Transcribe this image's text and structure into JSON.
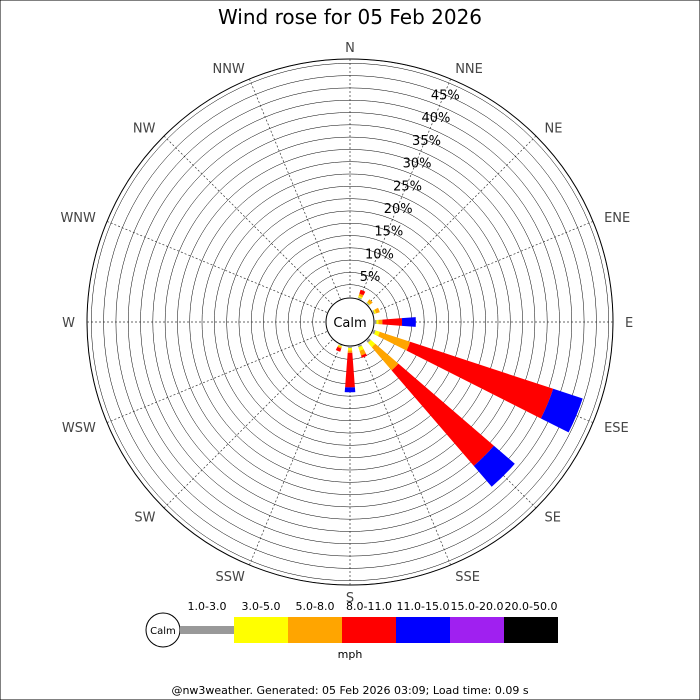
{
  "chart_data": {
    "type": "wind-rose",
    "title": "Wind rose for 05 Feb 2026",
    "directions": [
      "N",
      "NNE",
      "NE",
      "ENE",
      "E",
      "ESE",
      "SE",
      "SSE",
      "S",
      "SSW",
      "SW",
      "WSW",
      "W",
      "WNW",
      "NW",
      "NNW"
    ],
    "radial_ticks": [
      "5%",
      "10%",
      "15%",
      "20%",
      "25%",
      "30%",
      "35%",
      "40%",
      "45%"
    ],
    "radial_max": 50,
    "calm_label": "Calm",
    "unit": "mph",
    "speed_bins": [
      {
        "label": "1.0-3.0",
        "color": "#999999"
      },
      {
        "label": "3.0-5.0",
        "color": "#ffff00"
      },
      {
        "label": "5.0-8.0",
        "color": "#ffa500"
      },
      {
        "label": "8.0-11.0",
        "color": "#ff0000"
      },
      {
        "label": "11.0-15.0",
        "color": "#0000ff"
      },
      {
        "label": "15.0-20.0",
        "color": "#a020f0"
      },
      {
        "label": "20.0-50.0",
        "color": "#000000"
      }
    ],
    "series": [
      {
        "direction": "NNE",
        "values": [
          0.2,
          0.3,
          0.5,
          0.8,
          0,
          0,
          0
        ]
      },
      {
        "direction": "NE",
        "values": [
          0.2,
          0.2,
          0.6,
          0,
          0,
          0,
          0
        ]
      },
      {
        "direction": "ENE",
        "values": [
          0.2,
          0.3,
          0.8,
          0,
          0,
          0,
          0
        ]
      },
      {
        "direction": "E",
        "values": [
          0.3,
          0.4,
          0.8,
          4.0,
          2.8,
          0,
          0
        ]
      },
      {
        "direction": "ESE",
        "values": [
          0.4,
          0.9,
          6.5,
          30.6,
          6.3,
          0,
          0
        ]
      },
      {
        "direction": "SE",
        "values": [
          0.5,
          1.2,
          6.2,
          25.6,
          5.6,
          0,
          0
        ]
      },
      {
        "direction": "SSE",
        "values": [
          0.3,
          0.8,
          1.0,
          0.5,
          0,
          0,
          0
        ]
      },
      {
        "direction": "S",
        "values": [
          0.2,
          0.5,
          0.5,
          7.0,
          1.0,
          0,
          0
        ]
      },
      {
        "direction": "SSW",
        "values": [
          0.1,
          0.2,
          0.3,
          0.7,
          0,
          0,
          0
        ]
      }
    ]
  },
  "footer": "@nw3weather. Generated: 05 Feb 2026 03:09; Load time: 0.09 s"
}
